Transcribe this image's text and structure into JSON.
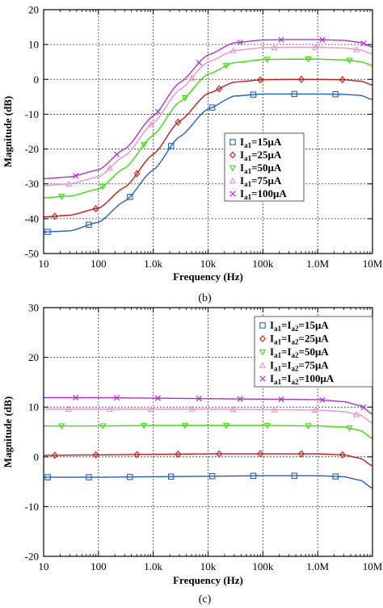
{
  "chart_data": [
    {
      "type": "line",
      "caption": "(b)",
      "xlabel": "Frequency (Hz)",
      "ylabel": "Magnitude (dB)",
      "xscale": "log",
      "xlim": [
        10,
        10000000
      ],
      "ylim": [
        -50,
        20
      ],
      "xticks": [
        10,
        100,
        1000,
        10000,
        100000,
        1000000,
        10000000
      ],
      "xtick_labels": [
        "10",
        "100",
        "1.0k",
        "10k",
        "100k",
        "1.0M",
        "10M"
      ],
      "yticks": [
        -50,
        -40,
        -30,
        -20,
        -10,
        0,
        10,
        20
      ],
      "ytick_labels": [
        "-50",
        "-40",
        "-30",
        "-20",
        "-10",
        "0",
        "10",
        "20"
      ],
      "grid": true,
      "legend_position": "center-right",
      "series": [
        {
          "name": "Ia1=15μA",
          "legend_parts": [
            [
              "I",
              ""
            ],
            [
              "a1",
              "sub"
            ],
            [
              "=15μA",
              ""
            ]
          ],
          "color": "#1f5fd6",
          "marker": "square",
          "x": [
            10,
            30,
            100,
            300,
            1000,
            3000,
            10000,
            30000,
            100000,
            300000,
            1000000,
            3000000,
            6000000,
            10000000
          ],
          "y": [
            -43.8,
            -43.5,
            -41.0,
            -35.0,
            -26.0,
            -16.5,
            -8.5,
            -4.8,
            -4.2,
            -4.2,
            -4.2,
            -4.3,
            -4.6,
            -5.8
          ]
        },
        {
          "name": "Ia1=25μA",
          "legend_parts": [
            [
              "I",
              ""
            ],
            [
              "a1",
              "sub"
            ],
            [
              "=25μA",
              ""
            ]
          ],
          "color": "#d21414",
          "marker": "diamond",
          "x": [
            10,
            30,
            100,
            300,
            1000,
            3000,
            10000,
            30000,
            100000,
            300000,
            1000000,
            3000000,
            6000000,
            10000000
          ],
          "y": [
            -39.5,
            -39.0,
            -37.0,
            -31.0,
            -21.5,
            -12.0,
            -4.0,
            -0.8,
            -0.1,
            0.0,
            0.0,
            -0.1,
            -0.5,
            -1.6
          ]
        },
        {
          "name": "Ia1=50μA",
          "legend_parts": [
            [
              "I",
              ""
            ],
            [
              "a1",
              "sub"
            ],
            [
              "=50μA",
              ""
            ]
          ],
          "color": "#33e300",
          "marker": "triangle-down",
          "x": [
            10,
            30,
            100,
            300,
            1000,
            3000,
            10000,
            30000,
            100000,
            300000,
            1000000,
            3000000,
            6000000,
            10000000
          ],
          "y": [
            -34.0,
            -33.5,
            -31.5,
            -25.5,
            -16.0,
            -6.5,
            1.5,
            4.8,
            5.7,
            5.8,
            5.8,
            5.6,
            5.1,
            4.0
          ]
        },
        {
          "name": "Ia1=75μA",
          "legend_parts": [
            [
              "I",
              ""
            ],
            [
              "a1",
              "sub"
            ],
            [
              "=75μA",
              ""
            ]
          ],
          "color": "#f090c8",
          "marker": "triangle-up",
          "x": [
            10,
            30,
            100,
            300,
            1000,
            3000,
            10000,
            30000,
            100000,
            300000,
            1000000,
            3000000,
            6000000,
            10000000
          ],
          "y": [
            -30.5,
            -30.0,
            -28.0,
            -22.0,
            -12.5,
            -3.0,
            5.0,
            8.3,
            9.1,
            9.2,
            9.2,
            9.0,
            8.5,
            7.3
          ]
        },
        {
          "name": "Ia1=100μA",
          "legend_parts": [
            [
              "I",
              ""
            ],
            [
              "a1",
              "sub"
            ],
            [
              "=100μA",
              ""
            ]
          ],
          "color": "#b030d8",
          "marker": "x",
          "x": [
            10,
            30,
            100,
            300,
            1000,
            3000,
            10000,
            30000,
            100000,
            300000,
            1000000,
            3000000,
            6000000,
            10000000
          ],
          "y": [
            -28.5,
            -28.0,
            -26.0,
            -20.0,
            -10.5,
            -1.0,
            7.0,
            10.5,
            11.3,
            11.4,
            11.4,
            11.2,
            10.6,
            9.3
          ]
        }
      ]
    },
    {
      "type": "line",
      "caption": "(c)",
      "xlabel": "Frequency (Hz)",
      "ylabel": "Magnitude (dB)",
      "xscale": "log",
      "xlim": [
        10,
        10000000
      ],
      "ylim": [
        -20,
        30
      ],
      "xticks": [
        10,
        100,
        1000,
        10000,
        100000,
        1000000,
        10000000
      ],
      "xtick_labels": [
        "10",
        "100",
        "1.0k",
        "10k",
        "100k",
        "1.0M",
        "10M"
      ],
      "yticks": [
        -20,
        -10,
        0,
        10,
        20,
        30
      ],
      "ytick_labels": [
        "-20",
        "-10",
        "0",
        "10",
        "20",
        "30"
      ],
      "grid": true,
      "legend_position": "top-right",
      "series": [
        {
          "name": "Ia1=Ia2=15μA",
          "legend_parts": [
            [
              "I",
              ""
            ],
            [
              "a1",
              "sub"
            ],
            [
              "=I",
              ""
            ],
            [
              "a2",
              "sub"
            ],
            [
              "=15μA",
              ""
            ]
          ],
          "color": "#1f5fd6",
          "marker": "square",
          "x": [
            10,
            100,
            1000,
            10000,
            100000,
            1000000,
            3000000,
            6000000,
            10000000
          ],
          "y": [
            -4.1,
            -4.1,
            -4.0,
            -3.9,
            -3.8,
            -3.8,
            -4.0,
            -4.7,
            -6.3
          ]
        },
        {
          "name": "Ia1=Ia2=25μA",
          "legend_parts": [
            [
              "I",
              ""
            ],
            [
              "a1",
              "sub"
            ],
            [
              "=I",
              ""
            ],
            [
              "a2",
              "sub"
            ],
            [
              "=25μA",
              ""
            ]
          ],
          "color": "#d21414",
          "marker": "diamond",
          "x": [
            10,
            100,
            1000,
            10000,
            100000,
            1000000,
            3000000,
            6000000,
            10000000
          ],
          "y": [
            0.3,
            0.4,
            0.5,
            0.6,
            0.6,
            0.6,
            0.4,
            -0.3,
            -1.8
          ]
        },
        {
          "name": "Ia1=Ia2=50μA",
          "legend_parts": [
            [
              "I",
              ""
            ],
            [
              "a1",
              "sub"
            ],
            [
              "=I",
              ""
            ],
            [
              "a2",
              "sub"
            ],
            [
              "=50μA",
              ""
            ]
          ],
          "color": "#33e300",
          "marker": "triangle-down",
          "x": [
            10,
            100,
            1000,
            10000,
            100000,
            1000000,
            3000000,
            6000000,
            10000000
          ],
          "y": [
            6.2,
            6.2,
            6.3,
            6.3,
            6.3,
            6.2,
            6.0,
            5.3,
            3.7
          ]
        },
        {
          "name": "Ia1=Ia2=75μA",
          "legend_parts": [
            [
              "I",
              ""
            ],
            [
              "a1",
              "sub"
            ],
            [
              "=I",
              ""
            ],
            [
              "a2",
              "sub"
            ],
            [
              "=75μA",
              ""
            ]
          ],
          "color": "#f090c8",
          "marker": "triangle-up",
          "x": [
            10,
            100,
            1000,
            10000,
            100000,
            1000000,
            3000000,
            6000000,
            10000000
          ],
          "y": [
            9.6,
            9.6,
            9.6,
            9.6,
            9.5,
            9.4,
            9.1,
            8.4,
            6.8
          ]
        },
        {
          "name": "Ia1=Ia2=100μA",
          "legend_parts": [
            [
              "I",
              ""
            ],
            [
              "a1",
              "sub"
            ],
            [
              "=I",
              ""
            ],
            [
              "a2",
              "sub"
            ],
            [
              "=100μA",
              ""
            ]
          ],
          "color": "#b030d8",
          "marker": "x",
          "x": [
            10,
            100,
            1000,
            10000,
            100000,
            1000000,
            3000000,
            6000000,
            10000000
          ],
          "y": [
            11.9,
            11.9,
            11.8,
            11.7,
            11.6,
            11.5,
            11.1,
            10.3,
            8.6
          ]
        }
      ]
    }
  ]
}
